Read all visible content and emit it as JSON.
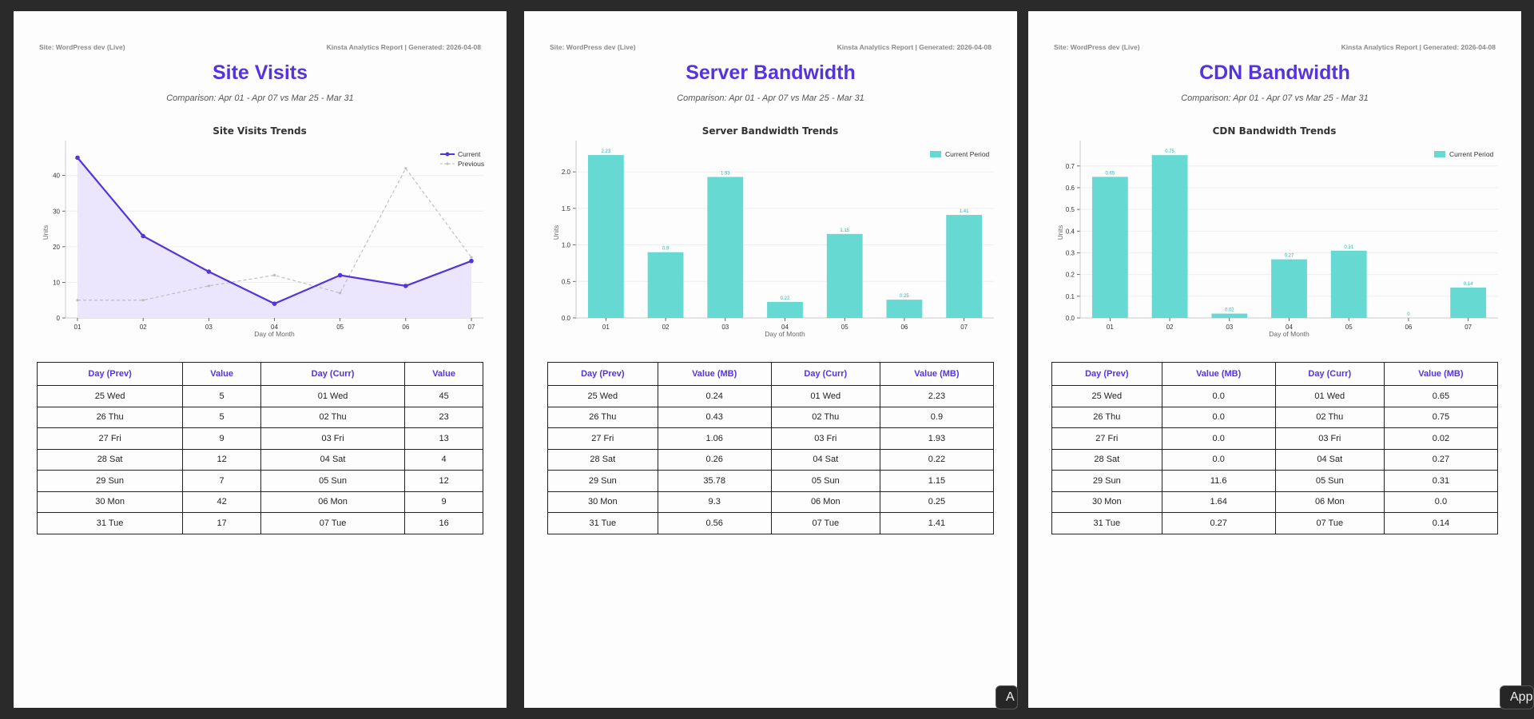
{
  "site_label": "Site: WordPress dev (Live)",
  "report_label": "Kinsta Analytics Report | Generated: 2026-04-08",
  "comparison": "Comparison: Apr 01 - Apr 07 vs Mar 25 - Mar 31",
  "app_button_labels": [
    "A",
    "App"
  ],
  "colors": {
    "accent": "#5533dd",
    "bar": "#66d9d2",
    "bar_label": "#2ab7ad",
    "area": "#ebe6fd",
    "previous": "#bbbbbb"
  },
  "pages": [
    {
      "title": "Site Visits",
      "chart_title": "Site Visits Trends",
      "table_headers": [
        "Day (Prev)",
        "Value",
        "Day (Curr)",
        "Value"
      ],
      "rows": [
        [
          "25 Wed",
          "5",
          "01 Wed",
          "45"
        ],
        [
          "26 Thu",
          "5",
          "02 Thu",
          "23"
        ],
        [
          "27 Fri",
          "9",
          "03 Fri",
          "13"
        ],
        [
          "28 Sat",
          "12",
          "04 Sat",
          "4"
        ],
        [
          "29 Sun",
          "7",
          "05 Sun",
          "12"
        ],
        [
          "30 Mon",
          "42",
          "06 Mon",
          "9"
        ],
        [
          "31 Tue",
          "17",
          "07 Tue",
          "16"
        ]
      ]
    },
    {
      "title": "Server Bandwidth",
      "chart_title": "Server Bandwidth Trends",
      "table_headers": [
        "Day (Prev)",
        "Value (MB)",
        "Day (Curr)",
        "Value (MB)"
      ],
      "rows": [
        [
          "25 Wed",
          "0.24",
          "01 Wed",
          "2.23"
        ],
        [
          "26 Thu",
          "0.43",
          "02 Thu",
          "0.9"
        ],
        [
          "27 Fri",
          "1.06",
          "03 Fri",
          "1.93"
        ],
        [
          "28 Sat",
          "0.26",
          "04 Sat",
          "0.22"
        ],
        [
          "29 Sun",
          "35.78",
          "05 Sun",
          "1.15"
        ],
        [
          "30 Mon",
          "9.3",
          "06 Mon",
          "0.25"
        ],
        [
          "31 Tue",
          "0.56",
          "07 Tue",
          "1.41"
        ]
      ]
    },
    {
      "title": "CDN Bandwidth",
      "chart_title": "CDN Bandwidth Trends",
      "table_headers": [
        "Day (Prev)",
        "Value (MB)",
        "Day (Curr)",
        "Value (MB)"
      ],
      "rows": [
        [
          "25 Wed",
          "0.0",
          "01 Wed",
          "0.65"
        ],
        [
          "26 Thu",
          "0.0",
          "02 Thu",
          "0.75"
        ],
        [
          "27 Fri",
          "0.0",
          "03 Fri",
          "0.02"
        ],
        [
          "28 Sat",
          "0.0",
          "04 Sat",
          "0.27"
        ],
        [
          "29 Sun",
          "11.6",
          "05 Sun",
          "0.31"
        ],
        [
          "30 Mon",
          "1.64",
          "06 Mon",
          "0.0"
        ],
        [
          "31 Tue",
          "0.27",
          "07 Tue",
          "0.14"
        ]
      ]
    }
  ],
  "chart_data": [
    {
      "type": "line",
      "title": "Site Visits Trends",
      "xlabel": "Day of Month",
      "ylabel": "Units",
      "categories": [
        "01",
        "02",
        "03",
        "04",
        "05",
        "06",
        "07"
      ],
      "ylim": [
        0,
        48
      ],
      "yticks": [
        0,
        10,
        20,
        30,
        40
      ],
      "series": [
        {
          "name": "Current",
          "values": [
            45,
            23,
            13,
            4,
            12,
            9,
            16
          ]
        },
        {
          "name": "Previous",
          "values": [
            5,
            5,
            9,
            12,
            7,
            42,
            17
          ]
        }
      ],
      "legend": "top-right",
      "grid": true
    },
    {
      "type": "bar",
      "title": "Server Bandwidth Trends",
      "xlabel": "Day of Month",
      "ylabel": "Units",
      "categories": [
        "01",
        "02",
        "03",
        "04",
        "05",
        "06",
        "07"
      ],
      "ylim": [
        0,
        2.34
      ],
      "yticks": [
        "0.0",
        "0.5",
        "1.0",
        "1.5",
        "2.0"
      ],
      "series": [
        {
          "name": "Current Period",
          "values": [
            2.23,
            0.9,
            1.93,
            0.22,
            1.15,
            0.25,
            1.41
          ]
        }
      ],
      "legend": "top-right",
      "grid": true
    },
    {
      "type": "bar",
      "title": "CDN Bandwidth Trends",
      "xlabel": "Day of Month",
      "ylabel": "Units",
      "categories": [
        "01",
        "02",
        "03",
        "04",
        "05",
        "06",
        "07"
      ],
      "ylim": [
        0,
        0.7875
      ],
      "yticks": [
        "0.0",
        "0.1",
        "0.2",
        "0.3",
        "0.4",
        "0.5",
        "0.6",
        "0.7"
      ],
      "series": [
        {
          "name": "Current Period",
          "values": [
            0.65,
            0.75,
            0.02,
            0.27,
            0.31,
            0.0,
            0.14
          ]
        }
      ],
      "legend": "top-right",
      "grid": true
    }
  ]
}
